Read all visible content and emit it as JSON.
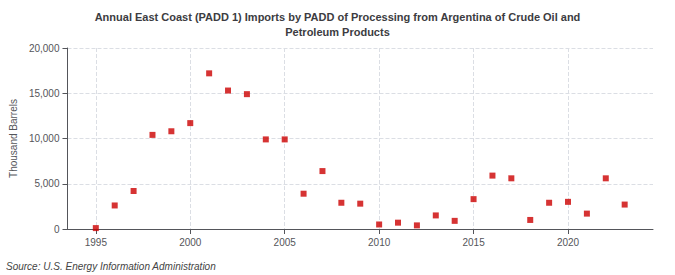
{
  "chart_data": {
    "type": "scatter",
    "title": "Annual East Coast (PADD 1) Imports by PADD of Processing from Argentina of Crude Oil and\nPetroleum Products",
    "ylabel": "Thousand Barrels",
    "annotations": [
      "Source: U.S. Energy Information Administration"
    ],
    "x": [
      1995,
      1996,
      1997,
      1998,
      1999,
      2000,
      2001,
      2002,
      2003,
      2004,
      2005,
      2006,
      2007,
      2008,
      2009,
      2010,
      2011,
      2012,
      2013,
      2014,
      2015,
      2016,
      2017,
      2018,
      2019,
      2020,
      2021,
      2022,
      2023
    ],
    "values": [
      100,
      2600,
      4200,
      10400,
      10800,
      11700,
      17200,
      15300,
      14900,
      9900,
      9900,
      3900,
      6400,
      2900,
      2800,
      500,
      700,
      400,
      1500,
      900,
      3300,
      5900,
      5600,
      1000,
      2900,
      3000,
      1700,
      5600,
      2700
    ],
    "color": "#cc0000",
    "marker": "square",
    "xlim": [
      1993.5,
      2024.5
    ],
    "xticks": [
      1995,
      2000,
      2005,
      2010,
      2015,
      2020
    ],
    "ylim": [
      0,
      20000
    ],
    "yticks": [
      0,
      {
        "value": 5000,
        "label": "5,000"
      },
      {
        "value": 10000,
        "label": "10,000"
      },
      {
        "value": 15000,
        "label": "15,000"
      },
      {
        "value": 20000,
        "label": "20,000"
      }
    ],
    "grid": true
  }
}
